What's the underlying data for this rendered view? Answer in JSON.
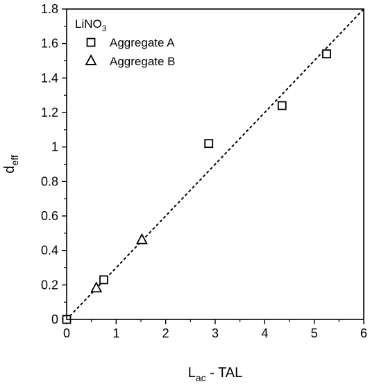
{
  "chart_data": {
    "type": "scatter",
    "title": "",
    "xlabel": {
      "main": "L",
      "sub": "ac",
      "rest": " - TAL"
    },
    "ylabel": {
      "main": "d",
      "sub": "eff"
    },
    "xlim": [
      0,
      6
    ],
    "ylim": [
      0,
      1.8
    ],
    "xticks": [
      0,
      1,
      2,
      3,
      4,
      5,
      6
    ],
    "xtick_labels": [
      "0",
      "1",
      "2",
      "3",
      "4",
      "5",
      "6"
    ],
    "yticks": [
      0,
      0.2,
      0.4,
      0.6,
      0.8,
      1.0,
      1.2,
      1.4,
      1.6,
      1.8
    ],
    "ytick_labels": [
      "0",
      "0.2",
      "0.4",
      "0.6",
      "0.8",
      "1",
      "1.2",
      "1.4",
      "1.6",
      "1.8"
    ],
    "grid": false,
    "legend_placement": "top-left",
    "legend": {
      "title": {
        "main": "LiNO",
        "sub": "3"
      },
      "entries": [
        "Aggregate A",
        "Aggregate B"
      ]
    },
    "series": [
      {
        "name": "Aggregate A",
        "marker": "square",
        "points": [
          {
            "x": 0.0,
            "y": 0.0
          },
          {
            "x": 0.75,
            "y": 0.23
          },
          {
            "x": 2.87,
            "y": 1.02
          },
          {
            "x": 4.35,
            "y": 1.24
          },
          {
            "x": 5.25,
            "y": 1.54
          }
        ]
      },
      {
        "name": "Aggregate B",
        "marker": "triangle",
        "points": [
          {
            "x": 0.6,
            "y": 0.18
          },
          {
            "x": 1.52,
            "y": 0.46
          }
        ]
      }
    ],
    "reference_line": {
      "style": "dotted",
      "x": [
        0,
        6
      ],
      "y": [
        0,
        1.8
      ]
    }
  }
}
